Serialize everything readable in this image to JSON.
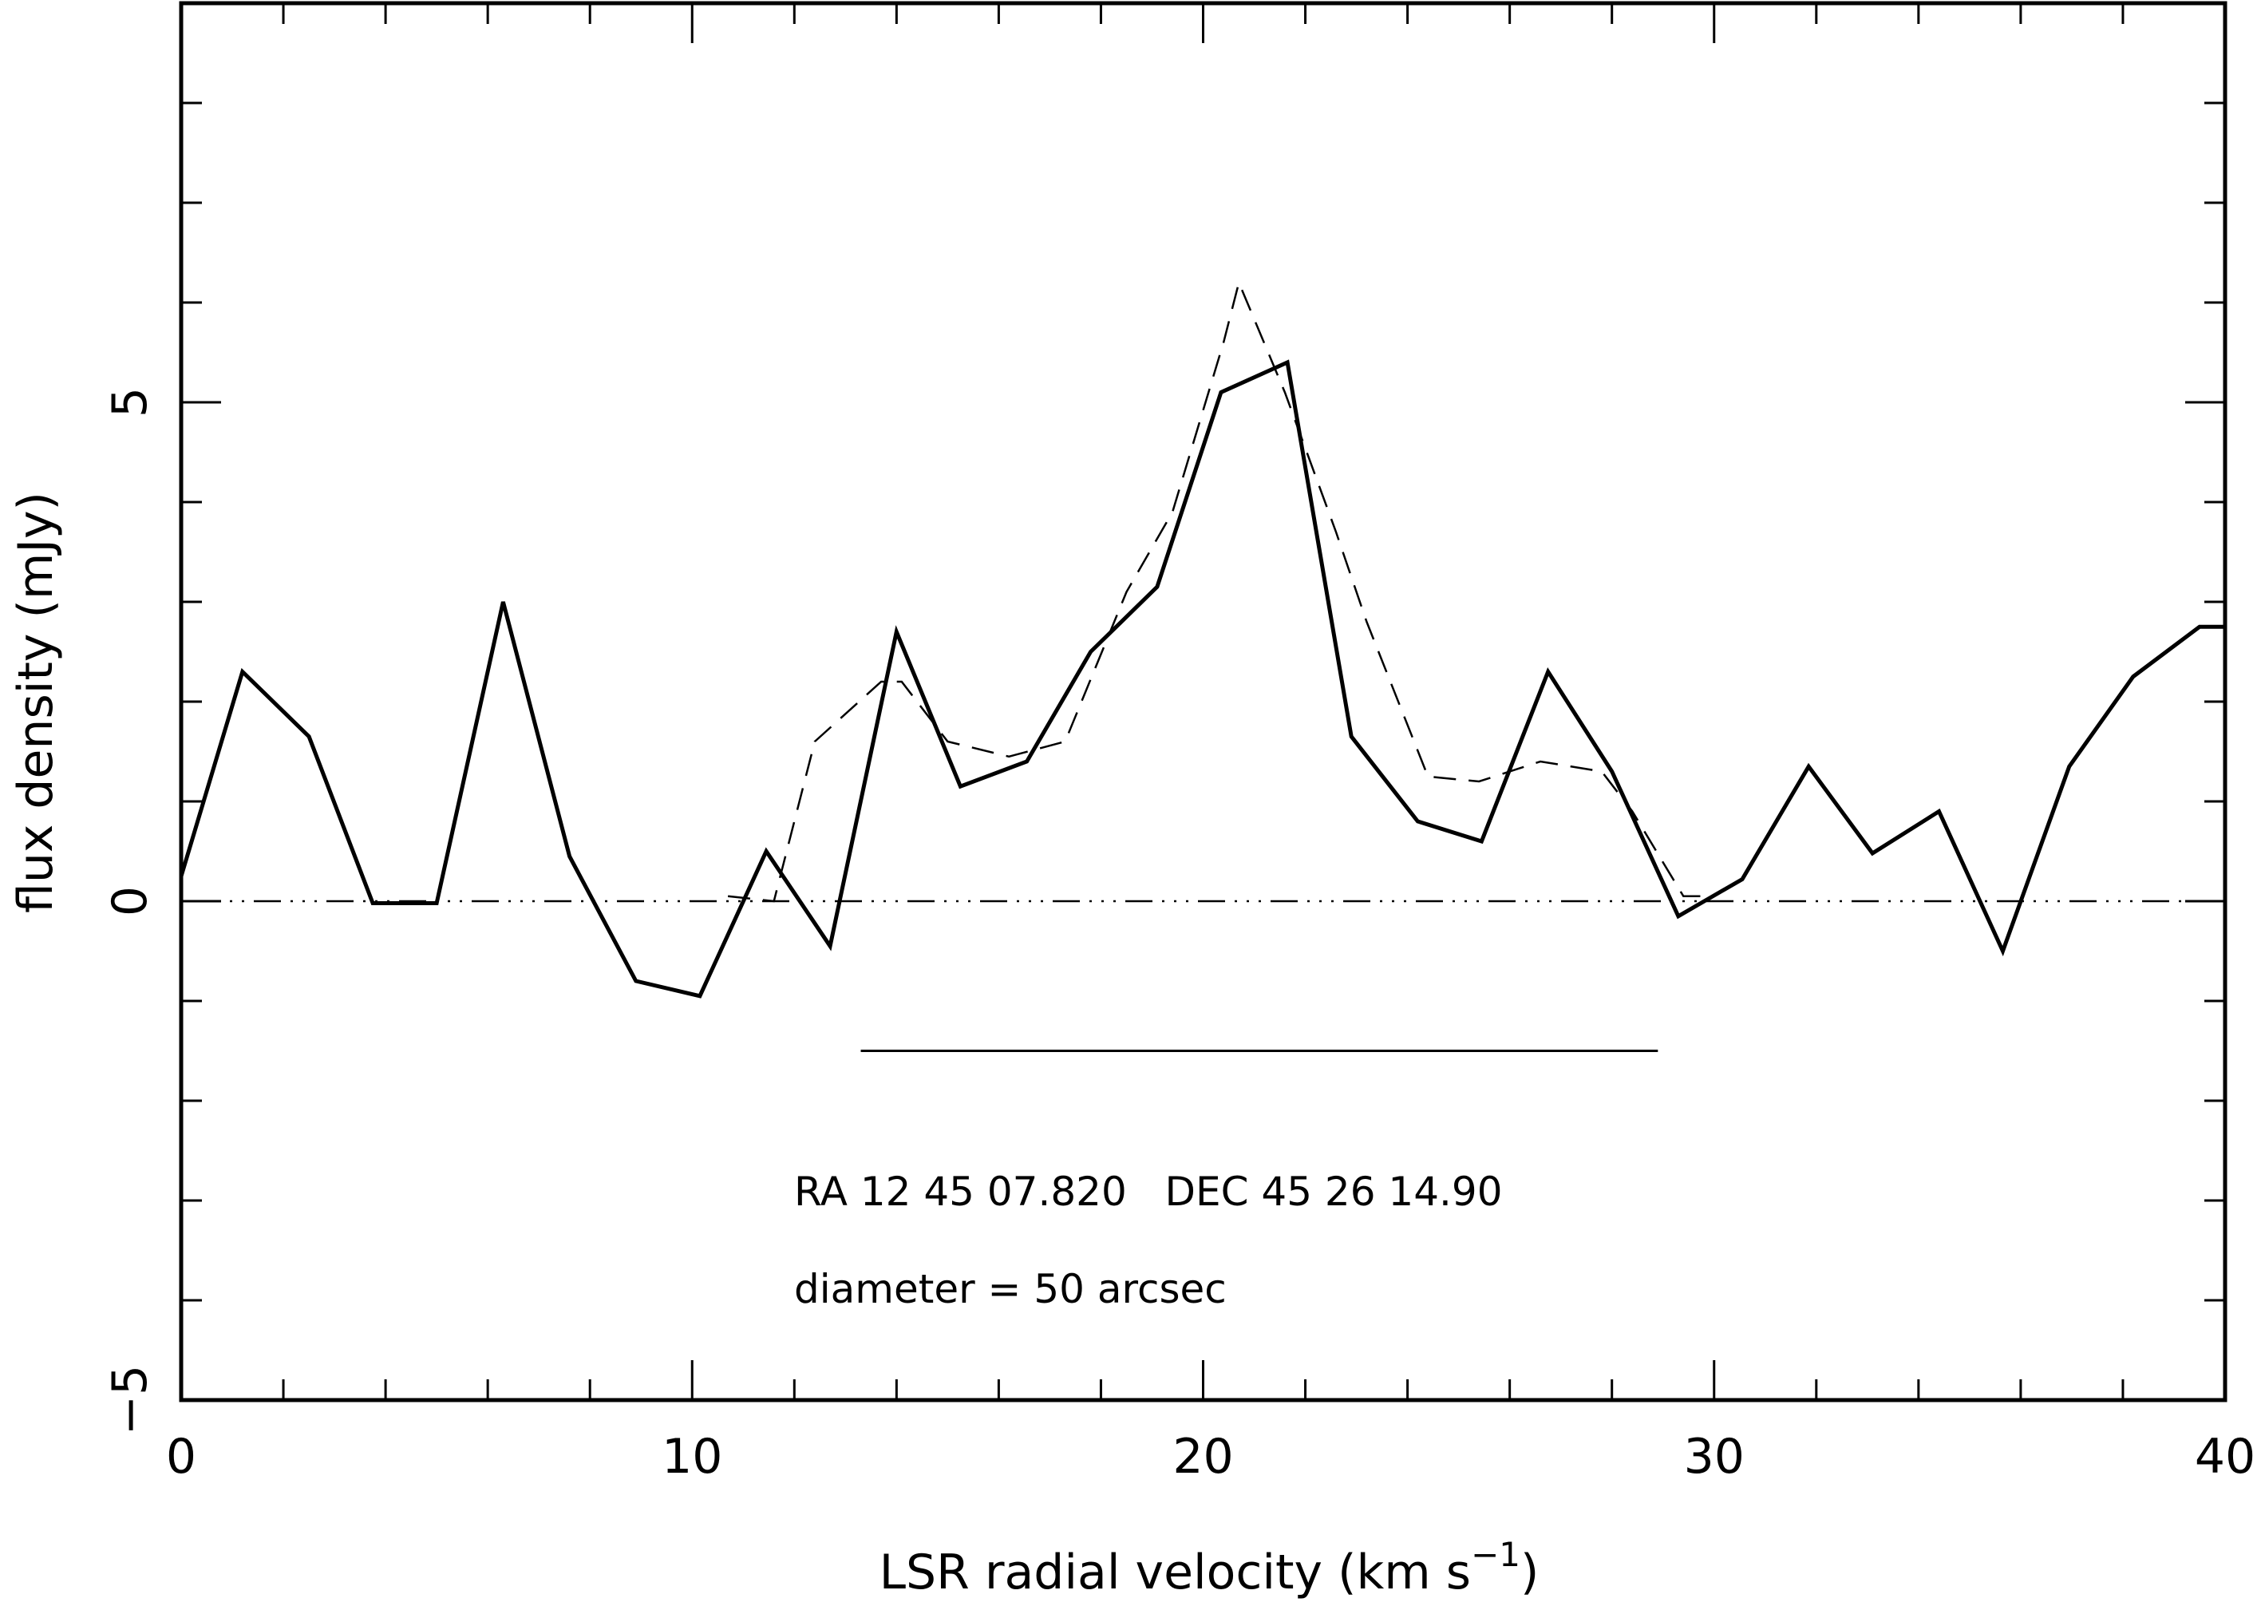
{
  "chart_data": {
    "type": "line",
    "xlabel": "LSR radial velocity (km s",
    "xlabel_unit_exp": "−1",
    "xlabel_close": ")",
    "ylabel": "flux density (mJy)",
    "xlim": [
      0,
      40
    ],
    "ylim": [
      -5,
      9
    ],
    "x_ticks": [
      0,
      10,
      20,
      30,
      40
    ],
    "x_tick_labels": [
      "0",
      "10",
      "20",
      "30",
      "40"
    ],
    "y_ticks": [
      -5,
      0,
      5
    ],
    "y_tick_labels": [
      "−5",
      "0",
      "5"
    ],
    "x_minor_step": 2,
    "y_minor_step": 1,
    "series": [
      {
        "style": "solid",
        "x": [
          0,
          1.2,
          2.5,
          3.75,
          5.0,
          6.3,
          7.6,
          8.9,
          10.15,
          11.45,
          12.7,
          14.0,
          15.25,
          16.55,
          17.8,
          19.1,
          20.35,
          21.65,
          22.9,
          24.2,
          25.45,
          26.75,
          28.0,
          29.3,
          30.55,
          31.85,
          33.1,
          34.4,
          35.65,
          36.95,
          38.2,
          39.5,
          40.0
        ],
        "y": [
          0.25,
          2.3,
          1.65,
          -0.02,
          -0.02,
          3.0,
          0.45,
          -0.8,
          -0.95,
          0.5,
          -0.45,
          2.7,
          1.15,
          1.4,
          2.5,
          3.15,
          5.1,
          5.4,
          1.65,
          0.8,
          0.6,
          2.3,
          1.3,
          -0.15,
          0.22,
          1.35,
          0.48,
          0.9,
          -0.5,
          1.35,
          2.25,
          2.75,
          2.75
        ]
      },
      {
        "style": "dashed",
        "x": [
          10.7,
          11.6,
          12.4,
          13.7,
          14.1,
          15.0,
          16.2,
          17.3,
          18.5,
          19.4,
          20.4,
          20.7,
          21.6,
          22.6,
          23.2,
          24.4,
          25.4,
          26.6,
          27.8,
          28.4,
          29.4,
          30.0
        ],
        "y": [
          0.05,
          0.0,
          1.6,
          2.2,
          2.2,
          1.6,
          1.45,
          1.6,
          3.1,
          3.9,
          5.6,
          6.2,
          5.1,
          3.7,
          2.8,
          1.25,
          1.2,
          1.4,
          1.3,
          0.9,
          0.05,
          0.05
        ]
      },
      {
        "style": "dash-dot",
        "x": [
          0,
          40
        ],
        "y": [
          0,
          0
        ]
      }
    ],
    "range_bar": {
      "x": [
        13.3,
        28.9
      ],
      "y": -1.5
    },
    "annotations": [
      "RA 12 45 07.820   DEC 45 26 14.90",
      "diameter = 50 arcsec"
    ],
    "grid": false
  }
}
